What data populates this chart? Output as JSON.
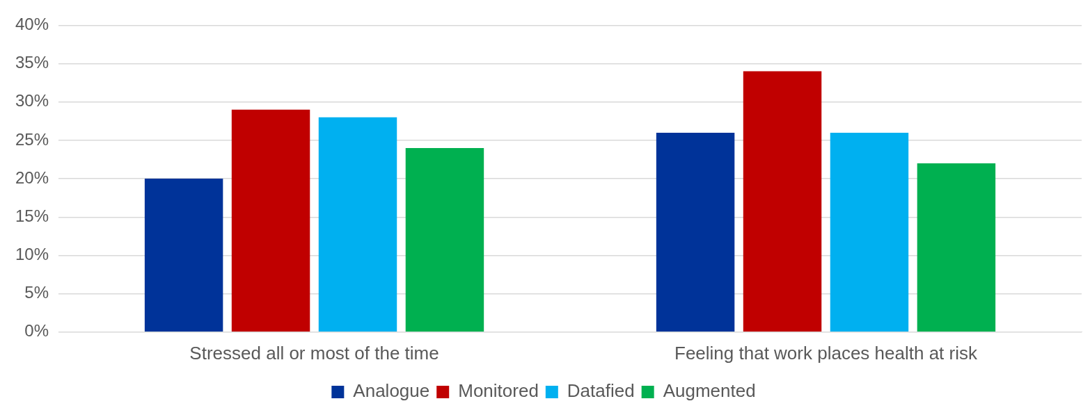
{
  "chart_data": {
    "type": "bar",
    "categories": [
      "Stressed all or most of the time",
      "Feeling that work places health at risk"
    ],
    "series": [
      {
        "name": "Analogue",
        "color": "#003399",
        "values": [
          20,
          26
        ]
      },
      {
        "name": "Monitored",
        "color": "#c00000",
        "values": [
          29,
          34
        ]
      },
      {
        "name": "Datafied",
        "color": "#00b0f0",
        "values": [
          28,
          26
        ]
      },
      {
        "name": "Augmented",
        "color": "#00b050",
        "values": [
          24,
          22
        ]
      }
    ],
    "ylim": [
      0,
      40
    ],
    "yticks": [
      {
        "value": 0,
        "label": "0%"
      },
      {
        "value": 5,
        "label": "5%"
      },
      {
        "value": 10,
        "label": "10%"
      },
      {
        "value": 15,
        "label": "15%"
      },
      {
        "value": 20,
        "label": "20%"
      },
      {
        "value": 25,
        "label": "25%"
      },
      {
        "value": 30,
        "label": "30%"
      },
      {
        "value": 35,
        "label": "35%"
      },
      {
        "value": 40,
        "label": "40%"
      }
    ],
    "grid": "y",
    "legend": "bottom"
  }
}
